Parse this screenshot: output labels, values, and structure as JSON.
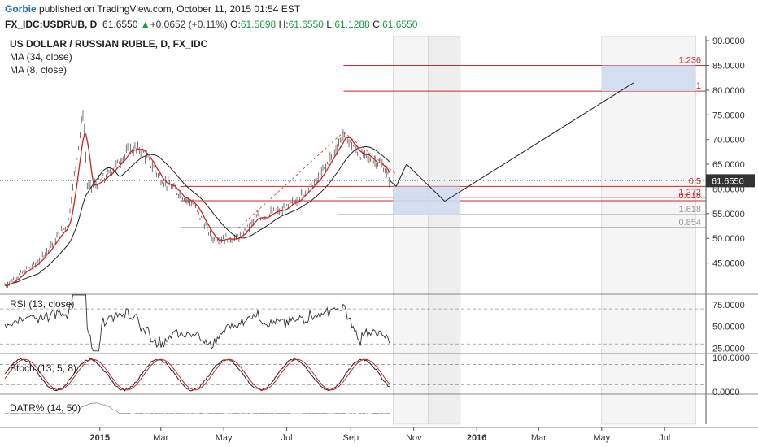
{
  "header": {
    "author": "Gorbie",
    "published": "published on TradingView.com, October 11, 2015 01:54 EST",
    "symbol": "FX_IDC:USDRUB, D",
    "last": "61.6550",
    "change_arrow": "▲",
    "change": "+0.0652 (+0.11%)",
    "o_label": "O:",
    "o_val": "61.5898",
    "h_label": "H:",
    "h_val": "61.6550",
    "l_label": "L:",
    "l_val": "61.1288",
    "c_label": "C:",
    "c_val": "61.6550"
  },
  "colors": {
    "price": "#333333",
    "ma8": "#d42121",
    "ma34": "#222222",
    "fib": "#cc2b2b",
    "fib_gray": "#999999",
    "box": "#cfdcf0",
    "shade": "#e4e4e4",
    "last_price_bg": "#333333"
  },
  "chart_data": [
    {
      "type": "line",
      "title": "US DOLLAR / RUSSIAN RUBLE, D, FX_IDC",
      "series": [
        {
          "name": "MA (34, close)"
        },
        {
          "name": "MA (8, close)"
        }
      ],
      "y_ticks": [
        "90.0000",
        "85.0000",
        "80.0000",
        "75.0000",
        "70.0000",
        "65.0000",
        "60.0000",
        "55.0000",
        "50.0000",
        "45.0000"
      ],
      "ylim": [
        40,
        91
      ],
      "x_ticks": [
        "2015",
        "Mar",
        "May",
        "Jul",
        "Sep",
        "Nov",
        "2016",
        "Mar",
        "May",
        "Jul"
      ],
      "last_price": "61.6550",
      "price_path": [
        [
          "2014-10-01",
          40.5
        ],
        [
          "2014-11-01",
          45
        ],
        [
          "2014-12-01",
          53
        ],
        [
          "2014-12-16",
          76
        ],
        [
          "2014-12-20",
          60
        ],
        [
          "2015-01-05",
          62
        ],
        [
          "2015-01-30",
          68
        ],
        [
          "2015-02-10",
          68
        ],
        [
          "2015-03-01",
          62
        ],
        [
          "2015-04-01",
          57
        ],
        [
          "2015-04-20",
          50
        ],
        [
          "2015-05-15",
          50
        ],
        [
          "2015-06-01",
          54
        ],
        [
          "2015-07-01",
          56
        ],
        [
          "2015-08-01",
          62
        ],
        [
          "2015-08-25",
          71
        ],
        [
          "2015-09-10",
          67
        ],
        [
          "2015-10-01",
          65
        ],
        [
          "2015-10-09",
          61.66
        ]
      ],
      "fib_levels": [
        {
          "label": "1.236",
          "value": 85.0
        },
        {
          "label": "1",
          "value": 79.8
        },
        {
          "label": "0.5",
          "value": 60.5
        },
        {
          "label": "1.272",
          "value": 58.3
        },
        {
          "label": "0.618",
          "value": 57.6
        },
        {
          "label": "1.618",
          "value": 54.8
        },
        {
          "label": "0.854",
          "value": 52.2
        }
      ],
      "projection": [
        [
          "2015-10-15",
          60.5
        ],
        [
          "2015-10-25",
          65.0
        ],
        [
          "2015-12-01",
          57.5
        ],
        [
          "2016-06-01",
          81.5
        ]
      ]
    },
    {
      "type": "line",
      "title": "RSI (13, close)",
      "y_ticks": [
        "75.0000",
        "50.0000",
        "25.0000"
      ],
      "ylim": [
        20,
        85
      ],
      "levels": [
        70,
        30
      ]
    },
    {
      "type": "line",
      "title": "Stoch (13, 5, 8)",
      "y_ticks": [
        "100.0000",
        "0.0000"
      ],
      "ylim": [
        -5,
        110
      ],
      "levels": [
        80,
        20
      ]
    },
    {
      "type": "line",
      "title": "DATR% (14, 50)",
      "y_ticks": []
    }
  ]
}
